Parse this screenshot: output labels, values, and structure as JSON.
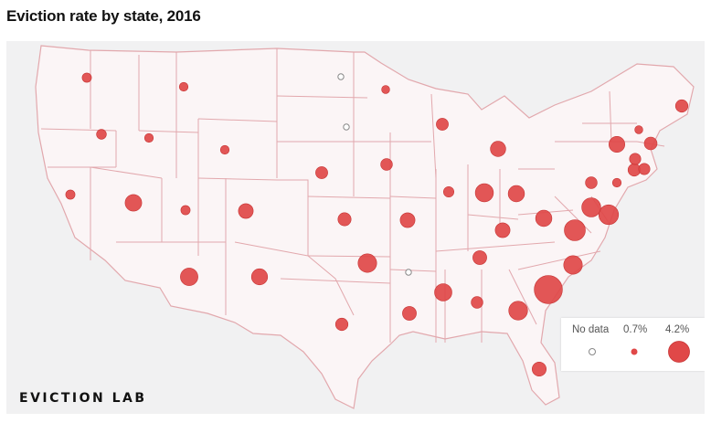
{
  "title": "Eviction rate by state, 2016",
  "brand": "EVICTION LAB",
  "colors": {
    "bubble": "#e04848",
    "bubble_stroke": "#c73535",
    "state_fill": "#fbf5f6",
    "state_border": "#e2a8ad",
    "background": "#f1f1f2"
  },
  "legend": {
    "no_data_label": "No data",
    "min_label": "0.7%",
    "max_label": "4.2%"
  },
  "chart_data": {
    "type": "proportional-symbol-map",
    "title": "Eviction rate by state, 2016",
    "unit": "%",
    "legend": [
      {
        "label": "No data",
        "value": null
      },
      {
        "label": "0.7%",
        "value": 0.7
      },
      {
        "label": "4.2%",
        "value": 4.2
      }
    ],
    "states": [
      {
        "state": "WA",
        "value": 0.5
      },
      {
        "state": "OR",
        "value": 0.6
      },
      {
        "state": "CA",
        "value": 0.5
      },
      {
        "state": "ID",
        "value": 0.4
      },
      {
        "state": "NV",
        "value": 2.6
      },
      {
        "state": "MT",
        "value": 0.4
      },
      {
        "state": "WY",
        "value": 0.4
      },
      {
        "state": "UT",
        "value": 0.5
      },
      {
        "state": "AZ",
        "value": 3.0
      },
      {
        "state": "CO",
        "value": 1.9
      },
      {
        "state": "NM",
        "value": 2.4
      },
      {
        "state": "ND",
        "value": null
      },
      {
        "state": "SD",
        "value": null
      },
      {
        "state": "NE",
        "value": 1.1
      },
      {
        "state": "KS",
        "value": 1.4
      },
      {
        "state": "OK",
        "value": 3.5
      },
      {
        "state": "TX",
        "value": 1.2
      },
      {
        "state": "MN",
        "value": 0.3
      },
      {
        "state": "IA",
        "value": 1.0
      },
      {
        "state": "MO",
        "value": 1.9
      },
      {
        "state": "AR",
        "value": null
      },
      {
        "state": "LA",
        "value": 1.6
      },
      {
        "state": "WI",
        "value": 1.1
      },
      {
        "state": "IL",
        "value": 0.7
      },
      {
        "state": "MI",
        "value": 2.1
      },
      {
        "state": "IN",
        "value": 3.2
      },
      {
        "state": "OH",
        "value": 2.5
      },
      {
        "state": "KY",
        "value": 1.9
      },
      {
        "state": "TN",
        "value": 1.6
      },
      {
        "state": "MS",
        "value": 2.9
      },
      {
        "state": "AL",
        "value": 1.0
      },
      {
        "state": "GA",
        "value": 3.6
      },
      {
        "state": "FL",
        "value": 1.7
      },
      {
        "state": "SC",
        "value": 9.3
      },
      {
        "state": "NC",
        "value": 3.5
      },
      {
        "state": "VA",
        "value": 4.7
      },
      {
        "state": "WV",
        "value": 2.5
      },
      {
        "state": "MD",
        "value": 4.0
      },
      {
        "state": "DE",
        "value": 3.7
      },
      {
        "state": "PA",
        "value": 1.0
      },
      {
        "state": "NJ",
        "value": 0.4
      },
      {
        "state": "NY",
        "value": 2.3
      },
      {
        "state": "CT",
        "value": 1.2
      },
      {
        "state": "RI",
        "value": 0.9
      },
      {
        "state": "MA",
        "value": 0.9
      },
      {
        "state": "VT",
        "value": 0.3
      },
      {
        "state": "NH",
        "value": 1.3
      },
      {
        "state": "ME",
        "value": 1.2
      }
    ]
  }
}
